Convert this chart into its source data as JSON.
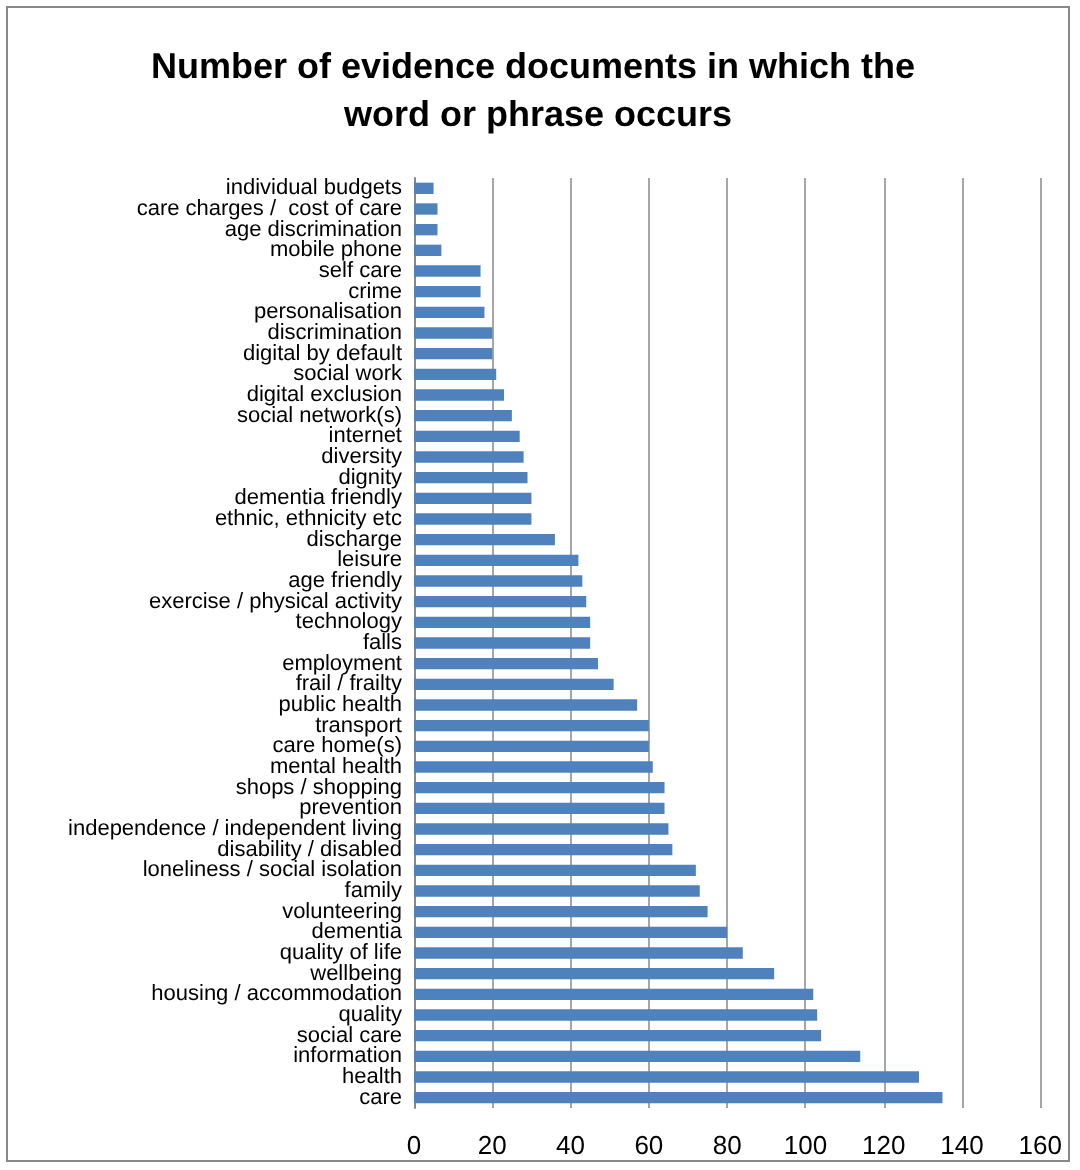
{
  "chart_data": {
    "type": "bar",
    "orientation": "horizontal",
    "title": "Number of evidence documents in which the word or phrase occurs",
    "categories": [
      "individual budgets",
      "care charges /  cost of care",
      "age discrimination",
      "mobile phone",
      "self care",
      "crime",
      "personalisation",
      "discrimination",
      "digital by default",
      "social work",
      "digital exclusion",
      "social network(s)",
      "internet",
      "diversity",
      "dignity",
      "dementia friendly",
      "ethnic, ethnicity etc",
      "discharge",
      "leisure",
      "age friendly",
      "exercise / physical activity",
      "technology",
      "falls",
      "employment",
      "frail / frailty",
      "public health",
      "transport",
      "care home(s)",
      "mental health",
      "shops / shopping",
      "prevention",
      "independence / independent living",
      "disability / disabled",
      "loneliness / social isolation",
      "family",
      "volunteering",
      "dementia",
      "quality of life",
      "wellbeing",
      "housing / accommodation",
      "quality",
      "social care",
      "information",
      "health",
      "care"
    ],
    "values": [
      5,
      6,
      6,
      7,
      17,
      17,
      18,
      20,
      20,
      21,
      23,
      25,
      27,
      28,
      29,
      30,
      30,
      36,
      42,
      43,
      44,
      45,
      45,
      47,
      51,
      57,
      60,
      60,
      61,
      64,
      64,
      65,
      66,
      72,
      73,
      75,
      80,
      84,
      92,
      102,
      103,
      104,
      114,
      129,
      135
    ],
    "color": "#4f81bd",
    "xlim": [
      0,
      160
    ],
    "xticks": [
      0,
      20,
      40,
      60,
      80,
      100,
      120,
      140,
      160
    ],
    "grid": "x"
  }
}
